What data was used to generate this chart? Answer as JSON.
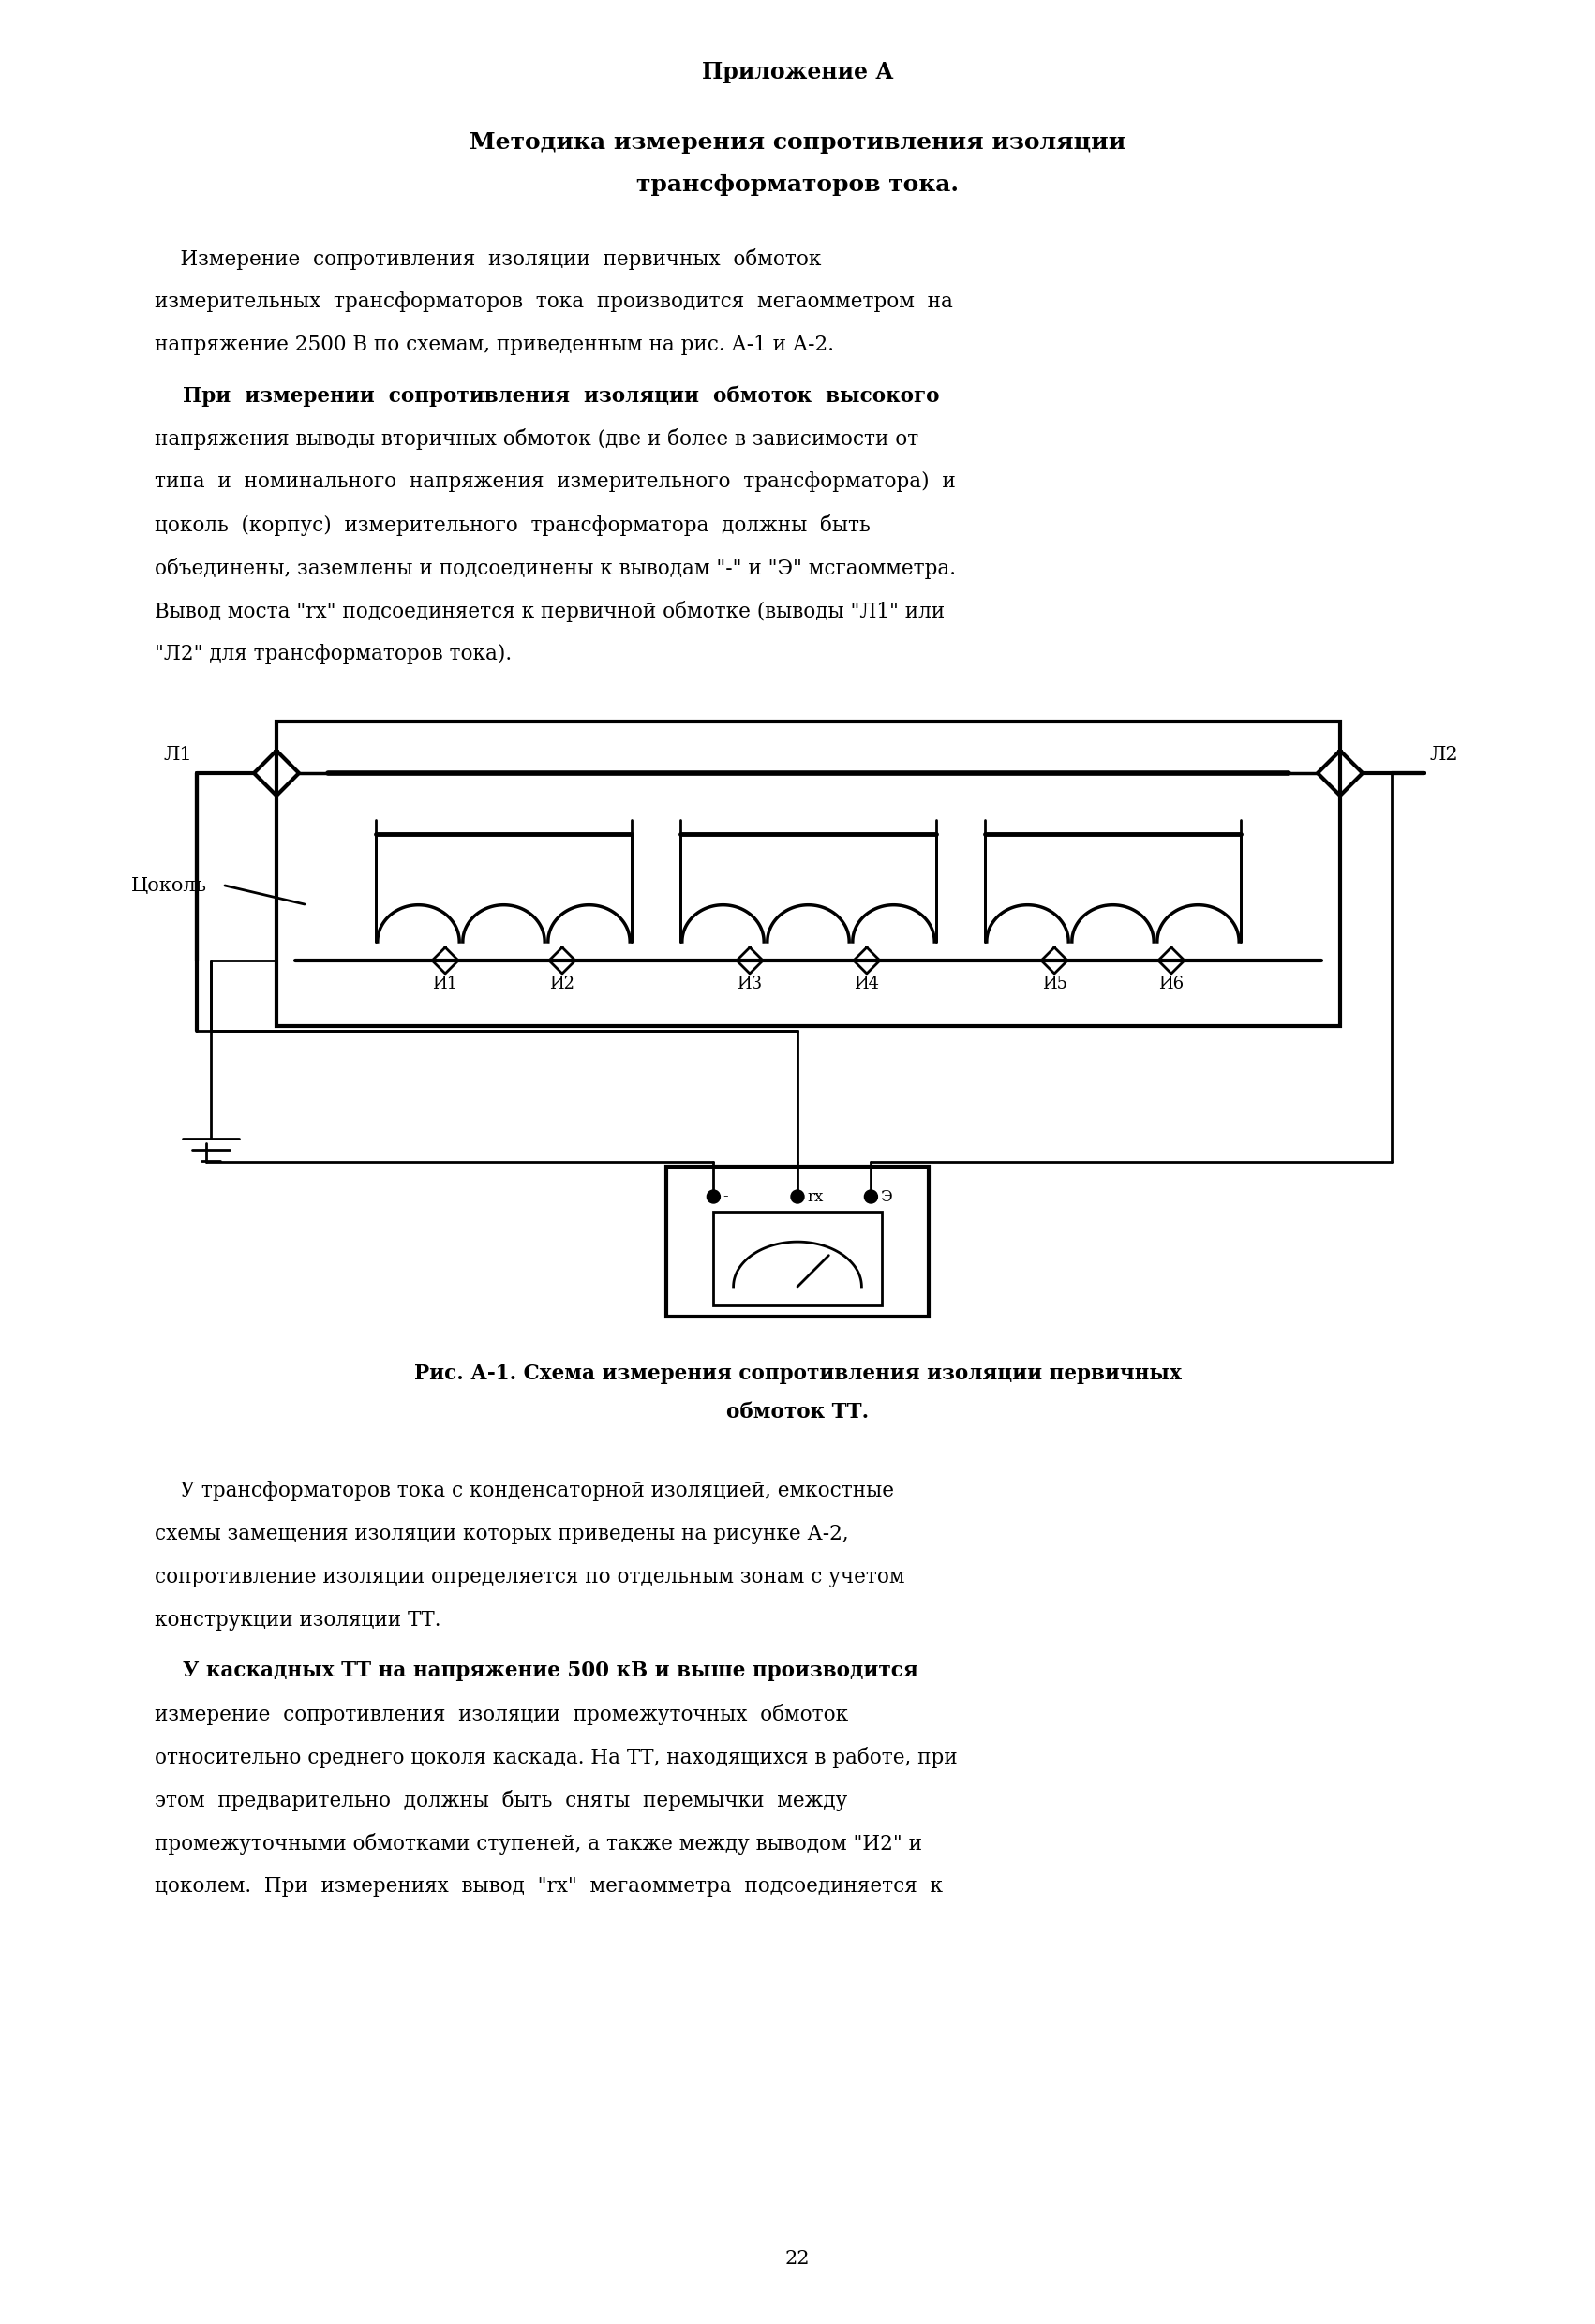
{
  "title": "Приложение А",
  "subtitle1": "Методика измерения сопротивления изоляции",
  "subtitle2": "трансформаторов тока.",
  "para1_lines": [
    "    Измерение  сопротивления  изоляции  первичных  обмоток",
    "измерительных  трансформаторов  тока  производится  мегаомметром  на",
    "напряжение 2500 В по схемам, приведенным на рис. А-1 и А-2."
  ],
  "para2_lines": [
    "    При  измерении  сопротивления  изоляции  обмоток  высокого",
    "напряжения выводы вторичных обмоток (две и более в зависимости от",
    "типа  и  номинального  напряжения  измерительного  трансформатора)  и",
    "цоколь  (корпус)  измерительного  трансформатора  должны  быть",
    "объединены, заземлены и подсоединены к выводам \"-\" и \"Э\" мсгаомметра.",
    "Вывод моста \"rх\" подсоединяется к первичной обмотке (выводы \"Л1\" или",
    "\"Л2\" для трансформаторов тока)."
  ],
  "fig_caption1": "Рис. А-1. Схема измерения сопротивления изоляции первичных",
  "fig_caption2": "обмоток ТТ.",
  "para3_lines": [
    "    У трансформаторов тока с конденсаторной изоляцией, емкостные",
    "схемы замещения изоляции которых приведены на рисунке А-2,",
    "сопротивление изоляции определяется по отдельным зонам с учетом",
    "конструкции изоляции ТТ."
  ],
  "para4_lines": [
    "    У каскадных ТТ на напряжение 500 кВ и выше производится",
    "измерение  сопротивления  изоляции  промежуточных  обмоток",
    "относительно среднего цоколя каскада. На ТТ, находящихся в работе, при",
    "этом  предварительно  должны  быть  сняты  перемычки  между",
    "промежуточными обмотками ступеней, а также между выводом \"И2\" и",
    "цоколем.  При  измерениях  вывод  \"rх\"  мегаомметра  подсоединяется  к"
  ],
  "page_number": "22",
  "bg_color": "#ffffff",
  "text_color": "#000000",
  "sec_labels": [
    "И1",
    "И2",
    "И3",
    "И4",
    "И5",
    "И6"
  ],
  "term_labels": [
    "-",
    "rх",
    "Э"
  ]
}
